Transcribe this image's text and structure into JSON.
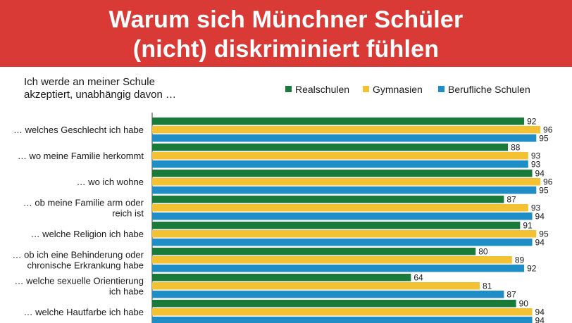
{
  "header": {
    "title_line1": "Warum sich Münchner Schüler",
    "title_line2": "(nicht) diskriminiert fühlen",
    "background": "#d93a35"
  },
  "chart_data": {
    "type": "bar",
    "orientation": "horizontal",
    "subtitle_line1": "Ich werde an meiner Schule",
    "subtitle_line2": "akzeptiert, unabhängig davon …",
    "legend_position": "top-right",
    "categories": [
      [
        "… welches Geschlecht ich habe"
      ],
      [
        "… wo meine Familie herkommt"
      ],
      [
        "… wo ich wohne"
      ],
      [
        "… ob meine Familie arm oder",
        "reich ist"
      ],
      [
        "… welche Religion ich habe"
      ],
      [
        "… ob ich eine Behinderung oder",
        "chronische Erkrankung habe"
      ],
      [
        "… welche sexuelle Orientierung",
        "ich habe"
      ],
      [
        "… welche Hautfarbe ich habe"
      ]
    ],
    "series": [
      {
        "name": "Realschulen",
        "color": "#1a7a3a",
        "values": [
          92,
          88,
          94,
          87,
          91,
          80,
          64,
          90
        ]
      },
      {
        "name": "Gymnasien",
        "color": "#f2c233",
        "values": [
          96,
          93,
          96,
          93,
          95,
          89,
          81,
          94
        ]
      },
      {
        "name": "Berufliche Schulen",
        "color": "#1f8ec6",
        "values": [
          95,
          93,
          95,
          94,
          94,
          92,
          87,
          94
        ]
      }
    ],
    "xlim": [
      0,
      100
    ],
    "grid": false
  }
}
